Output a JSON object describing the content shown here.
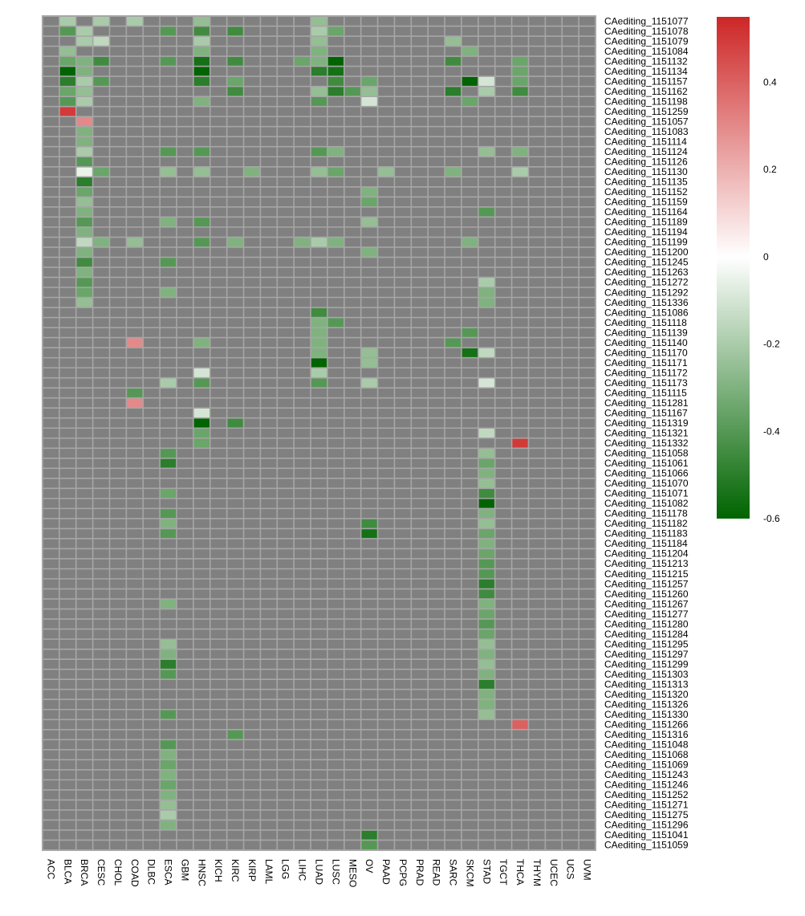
{
  "chart_data": {
    "type": "heatmap",
    "title": "",
    "xlabel": "",
    "ylabel": "",
    "x_categories": [
      "ACC",
      "BLCA",
      "BRCA",
      "CESC",
      "CHOL",
      "COAD",
      "DLBC",
      "ESCA",
      "GBM",
      "HNSC",
      "KICH",
      "KIRC",
      "KIRP",
      "LAML",
      "LGG",
      "LIHC",
      "LUAD",
      "LUSC",
      "MESO",
      "OV",
      "PAAD",
      "PCPG",
      "PRAD",
      "READ",
      "SARC",
      "SKCM",
      "STAD",
      "TGCT",
      "THCA",
      "THYM",
      "UCEC",
      "UCS",
      "UVM"
    ],
    "y_categories": [
      "CAediting_1151077",
      "CAediting_1151078",
      "CAediting_1151079",
      "CAediting_1151084",
      "CAediting_1151132",
      "CAediting_1151134",
      "CAediting_1151157",
      "CAediting_1151162",
      "CAediting_1151198",
      "CAediting_1151259",
      "CAediting_1151057",
      "CAediting_1151083",
      "CAediting_1151114",
      "CAediting_1151124",
      "CAediting_1151126",
      "CAediting_1151130",
      "CAediting_1151135",
      "CAediting_1151152",
      "CAediting_1151159",
      "CAediting_1151164",
      "CAediting_1151189",
      "CAediting_1151194",
      "CAediting_1151199",
      "CAediting_1151200",
      "CAediting_1151245",
      "CAediting_1151263",
      "CAediting_1151272",
      "CAediting_1151292",
      "CAediting_1151336",
      "CAediting_1151086",
      "CAediting_1151118",
      "CAediting_1151139",
      "CAediting_1151140",
      "CAediting_1151170",
      "CAediting_1151171",
      "CAediting_1151172",
      "CAediting_1151173",
      "CAediting_1151115",
      "CAediting_1151281",
      "CAediting_1151167",
      "CAediting_1151319",
      "CAediting_1151321",
      "CAediting_1151332",
      "CAediting_1151058",
      "CAediting_1151061",
      "CAediting_1151066",
      "CAediting_1151070",
      "CAediting_1151071",
      "CAediting_1151082",
      "CAediting_1151178",
      "CAediting_1151182",
      "CAediting_1151183",
      "CAediting_1151184",
      "CAediting_1151204",
      "CAediting_1151213",
      "CAediting_1151215",
      "CAediting_1151257",
      "CAediting_1151260",
      "CAediting_1151267",
      "CAediting_1151277",
      "CAediting_1151280",
      "CAediting_1151284",
      "CAediting_1151295",
      "CAediting_1151297",
      "CAediting_1151299",
      "CAediting_1151303",
      "CAediting_1151313",
      "CAediting_1151320",
      "CAediting_1151326",
      "CAediting_1151330",
      "CAediting_1151266",
      "CAediting_1151316",
      "CAediting_1151048",
      "CAediting_1151068",
      "CAediting_1151069",
      "CAediting_1151243",
      "CAediting_1151246",
      "CAediting_1151252",
      "CAediting_1151271",
      "CAediting_1151275",
      "CAediting_1151296",
      "CAediting_1151041",
      "CAediting_1151059"
    ],
    "cells": [
      [
        0,
        1,
        -0.2
      ],
      [
        0,
        3,
        -0.2
      ],
      [
        0,
        5,
        -0.2
      ],
      [
        0,
        9,
        -0.25
      ],
      [
        0,
        16,
        -0.25
      ],
      [
        1,
        1,
        -0.4
      ],
      [
        1,
        2,
        -0.2
      ],
      [
        1,
        7,
        -0.4
      ],
      [
        1,
        9,
        -0.45
      ],
      [
        1,
        11,
        -0.45
      ],
      [
        1,
        16,
        -0.2
      ],
      [
        1,
        17,
        -0.35
      ],
      [
        2,
        2,
        -0.2
      ],
      [
        2,
        3,
        -0.15
      ],
      [
        2,
        9,
        -0.2
      ],
      [
        2,
        16,
        -0.25
      ],
      [
        2,
        24,
        -0.25
      ],
      [
        3,
        1,
        -0.25
      ],
      [
        3,
        9,
        -0.3
      ],
      [
        3,
        16,
        -0.3
      ],
      [
        3,
        25,
        -0.3
      ],
      [
        4,
        1,
        -0.35
      ],
      [
        4,
        2,
        -0.3
      ],
      [
        4,
        3,
        -0.45
      ],
      [
        4,
        7,
        -0.4
      ],
      [
        4,
        9,
        -0.55
      ],
      [
        4,
        11,
        -0.45
      ],
      [
        4,
        15,
        -0.35
      ],
      [
        4,
        16,
        -0.3
      ],
      [
        4,
        17,
        -0.6
      ],
      [
        4,
        24,
        -0.45
      ],
      [
        4,
        28,
        -0.35
      ],
      [
        5,
        1,
        -0.6
      ],
      [
        5,
        2,
        -0.3
      ],
      [
        5,
        9,
        -0.6
      ],
      [
        5,
        16,
        -0.5
      ],
      [
        5,
        17,
        -0.55
      ],
      [
        5,
        28,
        -0.35
      ],
      [
        6,
        1,
        -0.5
      ],
      [
        6,
        2,
        -0.2
      ],
      [
        6,
        3,
        -0.4
      ],
      [
        6,
        9,
        -0.5
      ],
      [
        6,
        11,
        -0.35
      ],
      [
        6,
        17,
        -0.45
      ],
      [
        6,
        19,
        -0.35
      ],
      [
        6,
        25,
        -0.6
      ],
      [
        6,
        26,
        -0.1
      ],
      [
        6,
        28,
        -0.35
      ],
      [
        7,
        1,
        -0.35
      ],
      [
        7,
        2,
        -0.25
      ],
      [
        7,
        11,
        -0.45
      ],
      [
        7,
        16,
        -0.25
      ],
      [
        7,
        17,
        -0.5
      ],
      [
        7,
        18,
        -0.4
      ],
      [
        7,
        19,
        -0.25
      ],
      [
        7,
        24,
        -0.5
      ],
      [
        7,
        26,
        -0.2
      ],
      [
        7,
        28,
        -0.45
      ],
      [
        8,
        1,
        -0.4
      ],
      [
        8,
        2,
        -0.2
      ],
      [
        8,
        9,
        -0.3
      ],
      [
        8,
        16,
        -0.4
      ],
      [
        8,
        19,
        -0.1
      ],
      [
        8,
        25,
        -0.35
      ],
      [
        9,
        1,
        0.5
      ],
      [
        10,
        2,
        0.3
      ],
      [
        11,
        2,
        -0.3
      ],
      [
        12,
        2,
        -0.3
      ],
      [
        13,
        2,
        -0.2
      ],
      [
        13,
        7,
        -0.4
      ],
      [
        13,
        9,
        -0.4
      ],
      [
        13,
        16,
        -0.4
      ],
      [
        13,
        17,
        -0.3
      ],
      [
        13,
        26,
        -0.25
      ],
      [
        13,
        28,
        -0.3
      ],
      [
        14,
        2,
        -0.4
      ],
      [
        15,
        2,
        -0.05
      ],
      [
        15,
        3,
        -0.35
      ],
      [
        15,
        7,
        -0.25
      ],
      [
        15,
        9,
        -0.25
      ],
      [
        15,
        12,
        -0.3
      ],
      [
        15,
        16,
        -0.25
      ],
      [
        15,
        17,
        -0.35
      ],
      [
        15,
        20,
        -0.25
      ],
      [
        15,
        24,
        -0.3
      ],
      [
        15,
        28,
        -0.2
      ],
      [
        16,
        2,
        -0.5
      ],
      [
        17,
        2,
        -0.35
      ],
      [
        17,
        19,
        -0.3
      ],
      [
        18,
        2,
        -0.25
      ],
      [
        18,
        19,
        -0.35
      ],
      [
        19,
        2,
        -0.3
      ],
      [
        19,
        26,
        -0.4
      ],
      [
        20,
        2,
        -0.4
      ],
      [
        20,
        7,
        -0.3
      ],
      [
        20,
        9,
        -0.4
      ],
      [
        20,
        19,
        -0.25
      ],
      [
        21,
        2,
        -0.3
      ],
      [
        22,
        2,
        -0.15
      ],
      [
        22,
        3,
        -0.3
      ],
      [
        22,
        5,
        -0.25
      ],
      [
        22,
        9,
        -0.4
      ],
      [
        22,
        11,
        -0.3
      ],
      [
        22,
        15,
        -0.3
      ],
      [
        22,
        16,
        -0.2
      ],
      [
        22,
        17,
        -0.3
      ],
      [
        22,
        25,
        -0.3
      ],
      [
        23,
        2,
        -0.3
      ],
      [
        23,
        19,
        -0.3
      ],
      [
        24,
        2,
        -0.45
      ],
      [
        24,
        7,
        -0.4
      ],
      [
        25,
        2,
        -0.3
      ],
      [
        26,
        2,
        -0.4
      ],
      [
        26,
        26,
        -0.2
      ],
      [
        27,
        2,
        -0.35
      ],
      [
        27,
        7,
        -0.3
      ],
      [
        27,
        26,
        -0.3
      ],
      [
        28,
        2,
        -0.25
      ],
      [
        28,
        26,
        -0.3
      ],
      [
        29,
        16,
        -0.45
      ],
      [
        30,
        16,
        -0.3
      ],
      [
        30,
        17,
        -0.4
      ],
      [
        31,
        16,
        -0.3
      ],
      [
        31,
        25,
        -0.4
      ],
      [
        32,
        5,
        0.3
      ],
      [
        32,
        9,
        -0.3
      ],
      [
        32,
        16,
        -0.3
      ],
      [
        32,
        24,
        -0.4
      ],
      [
        33,
        16,
        -0.3
      ],
      [
        33,
        19,
        -0.25
      ],
      [
        33,
        25,
        -0.55
      ],
      [
        33,
        26,
        -0.15
      ],
      [
        34,
        16,
        -0.6
      ],
      [
        34,
        19,
        -0.25
      ],
      [
        35,
        9,
        -0.1
      ],
      [
        35,
        16,
        -0.2
      ],
      [
        36,
        7,
        -0.2
      ],
      [
        36,
        9,
        -0.4
      ],
      [
        36,
        16,
        -0.4
      ],
      [
        36,
        19,
        -0.2
      ],
      [
        36,
        26,
        -0.1
      ],
      [
        37,
        5,
        -0.4
      ],
      [
        38,
        5,
        0.3
      ],
      [
        39,
        9,
        -0.1
      ],
      [
        40,
        9,
        -0.6
      ],
      [
        40,
        11,
        -0.45
      ],
      [
        41,
        9,
        -0.35
      ],
      [
        41,
        26,
        -0.15
      ],
      [
        42,
        9,
        -0.35
      ],
      [
        42,
        28,
        0.5
      ],
      [
        43,
        7,
        -0.4
      ],
      [
        43,
        26,
        -0.25
      ],
      [
        44,
        7,
        -0.5
      ],
      [
        44,
        26,
        -0.35
      ],
      [
        45,
        26,
        -0.3
      ],
      [
        46,
        26,
        -0.25
      ],
      [
        47,
        7,
        -0.35
      ],
      [
        47,
        26,
        -0.45
      ],
      [
        48,
        26,
        -0.6
      ],
      [
        49,
        7,
        -0.4
      ],
      [
        49,
        26,
        -0.3
      ],
      [
        50,
        7,
        -0.3
      ],
      [
        50,
        19,
        -0.45
      ],
      [
        50,
        26,
        -0.25
      ],
      [
        51,
        7,
        -0.4
      ],
      [
        51,
        19,
        -0.55
      ],
      [
        51,
        26,
        -0.35
      ],
      [
        52,
        26,
        -0.3
      ],
      [
        53,
        26,
        -0.35
      ],
      [
        54,
        26,
        -0.4
      ],
      [
        55,
        26,
        -0.4
      ],
      [
        56,
        26,
        -0.5
      ],
      [
        57,
        26,
        -0.45
      ],
      [
        58,
        7,
        -0.3
      ],
      [
        58,
        26,
        -0.3
      ],
      [
        59,
        26,
        -0.35
      ],
      [
        60,
        26,
        -0.4
      ],
      [
        61,
        26,
        -0.35
      ],
      [
        62,
        7,
        -0.25
      ],
      [
        62,
        26,
        -0.25
      ],
      [
        63,
        7,
        -0.3
      ],
      [
        63,
        26,
        -0.3
      ],
      [
        64,
        7,
        -0.5
      ],
      [
        64,
        26,
        -0.25
      ],
      [
        65,
        7,
        -0.4
      ],
      [
        65,
        26,
        -0.3
      ],
      [
        66,
        26,
        -0.5
      ],
      [
        67,
        26,
        -0.3
      ],
      [
        68,
        26,
        -0.3
      ],
      [
        69,
        7,
        -0.4
      ],
      [
        69,
        26,
        -0.25
      ],
      [
        70,
        28,
        0.4
      ],
      [
        71,
        11,
        -0.4
      ],
      [
        72,
        7,
        -0.4
      ],
      [
        73,
        7,
        -0.3
      ],
      [
        74,
        7,
        -0.35
      ],
      [
        75,
        7,
        -0.3
      ],
      [
        76,
        7,
        -0.35
      ],
      [
        77,
        7,
        -0.3
      ],
      [
        78,
        7,
        -0.25
      ],
      [
        79,
        7,
        -0.2
      ],
      [
        80,
        7,
        -0.3
      ],
      [
        81,
        19,
        -0.5
      ],
      [
        82,
        19,
        -0.4
      ]
    ],
    "na_color": "#808080",
    "grid_color": "#a6a6a6",
    "color_scale": {
      "low": "#006400",
      "mid": "#ffffff",
      "high": "#cd2626",
      "min": -0.6,
      "mid_value": 0,
      "max": 0.55
    },
    "legend": {
      "position": "right",
      "ticks": [
        "0.4",
        "0.2",
        "0",
        "-0.2",
        "-0.4",
        "-0.6"
      ]
    }
  }
}
